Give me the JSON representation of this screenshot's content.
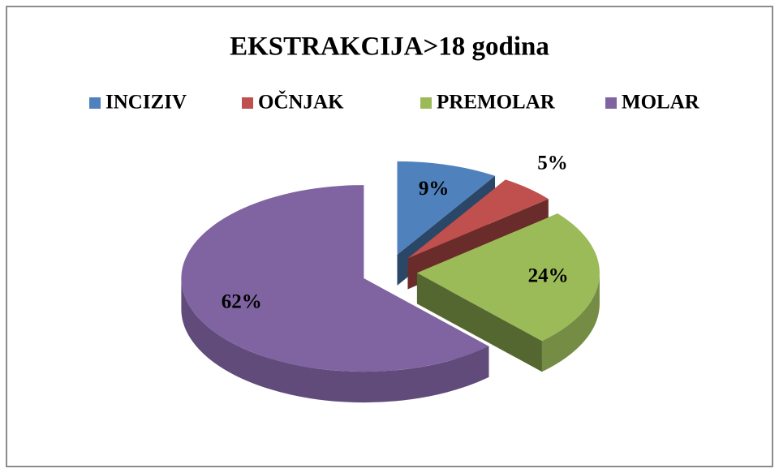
{
  "chart_data": {
    "type": "pie",
    "title": "EKSTRAKCIJA>18 godina",
    "categories": [
      "INCIZIV",
      "OČNJAK",
      "PREMOLAR",
      "MOLAR"
    ],
    "values": [
      9,
      5,
      24,
      62
    ],
    "value_labels": [
      "9%",
      "5%",
      "24%",
      "62%"
    ],
    "colors": [
      "#4f81bd",
      "#c0504d",
      "#9bbb59",
      "#8064a2"
    ],
    "legend": "top"
  }
}
